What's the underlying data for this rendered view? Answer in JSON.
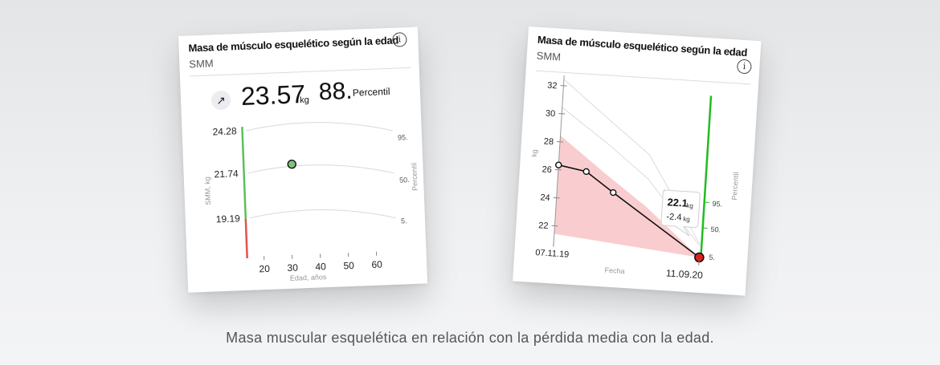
{
  "card1": {
    "title": "Masa de músculo esquelético según la edad",
    "subtitle": "SMM",
    "info_icon": "info-icon",
    "trend_icon": "arrow-up-right-icon",
    "trend_glyph": "↗",
    "value": "23.57",
    "value_unit": "kg",
    "percentile_value": "88.",
    "percentile_label": "Percentil",
    "y_axis_label": "SMM, kg",
    "y_ticks": [
      "24.28",
      "21.74",
      "19.19"
    ],
    "percentile_axis_label": "Percentil",
    "percentile_curves": [
      "95.",
      "50.",
      "5."
    ],
    "x_ticks": [
      "20",
      "30",
      "40",
      "50",
      "60"
    ],
    "x_axis_label": "Edad, años",
    "current_point": {
      "age": 30,
      "smm": 23.57
    },
    "colors": {
      "green": "#5cc05c",
      "red": "#e05252",
      "point": "#7dc47d"
    }
  },
  "card2": {
    "title": "Masa de músculo esquelético según la edad",
    "subtitle": "SMM",
    "info_icon": "info-icon",
    "y_axis_label": "kg",
    "y_ticks": [
      "32",
      "30",
      "28",
      "26",
      "24",
      "22"
    ],
    "x_start_label": "07.11.19",
    "x_end_label": "11.09.20",
    "x_axis_label": "Fecha",
    "percentile_axis_label": "Percentil",
    "percentile_ticks": [
      "95.",
      "50.",
      "5."
    ],
    "tooltip_value": "22.1",
    "tooltip_unit": "kg",
    "tooltip_delta": "-2.4",
    "tooltip_delta_unit": "kg",
    "colors": {
      "green": "#22bb22",
      "fill": "#f9cdcf",
      "highlight": "#e02020"
    }
  },
  "caption": "Masa muscular esquelética en relación con la pérdida media con la edad.",
  "chart_data": [
    {
      "type": "line",
      "title": "Masa de músculo esquelético según la edad",
      "xlabel": "Edad, años",
      "ylabel": "SMM, kg",
      "x": [
        20,
        30,
        40,
        50,
        60
      ],
      "series": [
        {
          "name": "95.",
          "values": [
            24.28,
            24.35,
            24.3,
            24.15,
            23.9
          ]
        },
        {
          "name": "50.",
          "values": [
            21.74,
            21.8,
            21.75,
            21.6,
            21.4
          ]
        },
        {
          "name": "5.",
          "values": [
            19.19,
            19.25,
            19.2,
            19.05,
            18.85
          ]
        }
      ]
    },
    {
      "type": "line",
      "title": "Masa de músculo esquelético según la edad",
      "xlabel": "Fecha",
      "ylabel": "kg",
      "ylim": [
        21,
        33
      ],
      "x": [
        "07.11.19",
        "",
        "",
        "11.09.20"
      ],
      "series": [
        {
          "values": [
            25.7,
            25.2,
            23.9,
            22.1
          ]
        }
      ]
    }
  ]
}
